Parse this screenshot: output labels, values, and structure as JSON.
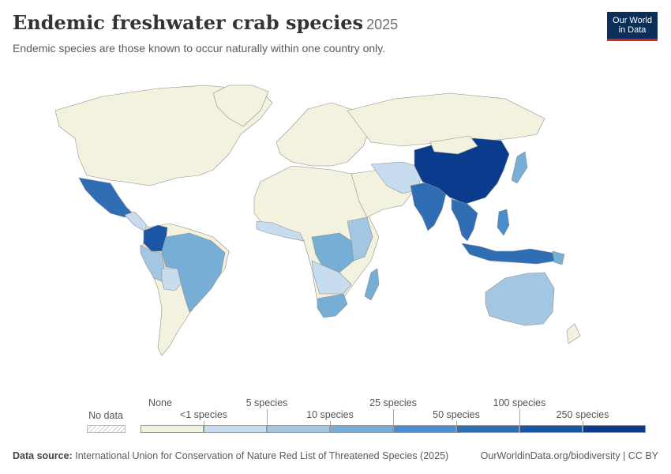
{
  "header": {
    "title": "Endemic freshwater crab species",
    "year": "2025",
    "subtitle": "Endemic species are those known to occur naturally within one country only.",
    "logo_line1": "Our World",
    "logo_line2": "in Data"
  },
  "legend": {
    "no_data_label": "No data",
    "bins": [
      {
        "label": "None",
        "color": "#f2f2df"
      },
      {
        "label": "<1 species",
        "color": "#c8dcef"
      },
      {
        "label": "5 species",
        "color": "#a3c6e2"
      },
      {
        "label": "10 species",
        "color": "#77aed6"
      },
      {
        "label": "25 species",
        "color": "#4a8fcb"
      },
      {
        "label": "50 species",
        "color": "#2f6eb5"
      },
      {
        "label": "100 species",
        "color": "#1a56a4"
      },
      {
        "label": "250 species",
        "color": "#0a3b8c"
      }
    ]
  },
  "map_data": {
    "scale": [
      "None",
      "<1 species",
      "5 species",
      "10 species",
      "25 species",
      "50 species",
      "100 species",
      "250 species"
    ],
    "regions": [
      {
        "name": "China",
        "bin": 7
      },
      {
        "name": "Colombia",
        "bin": 6
      },
      {
        "name": "Mexico",
        "bin": 5
      },
      {
        "name": "India",
        "bin": 5
      },
      {
        "name": "Indonesia",
        "bin": 5
      },
      {
        "name": "Thailand",
        "bin": 5
      },
      {
        "name": "Brazil",
        "bin": 3
      },
      {
        "name": "Congo",
        "bin": 3
      },
      {
        "name": "South Africa",
        "bin": 3
      },
      {
        "name": "Madagascar",
        "bin": 3
      },
      {
        "name": "Japan",
        "bin": 3
      },
      {
        "name": "Philippines",
        "bin": 4
      },
      {
        "name": "Australia",
        "bin": 2
      },
      {
        "name": "Peru",
        "bin": 2
      },
      {
        "name": "Bolivia",
        "bin": 1
      },
      {
        "name": "Iran",
        "bin": 1
      }
    ]
  },
  "footer": {
    "source_label": "Data source:",
    "source_text": "International Union for Conservation of Nature Red List of Threatened Species (2025)",
    "credit": "OurWorldinData.org/biodiversity | CC BY"
  }
}
